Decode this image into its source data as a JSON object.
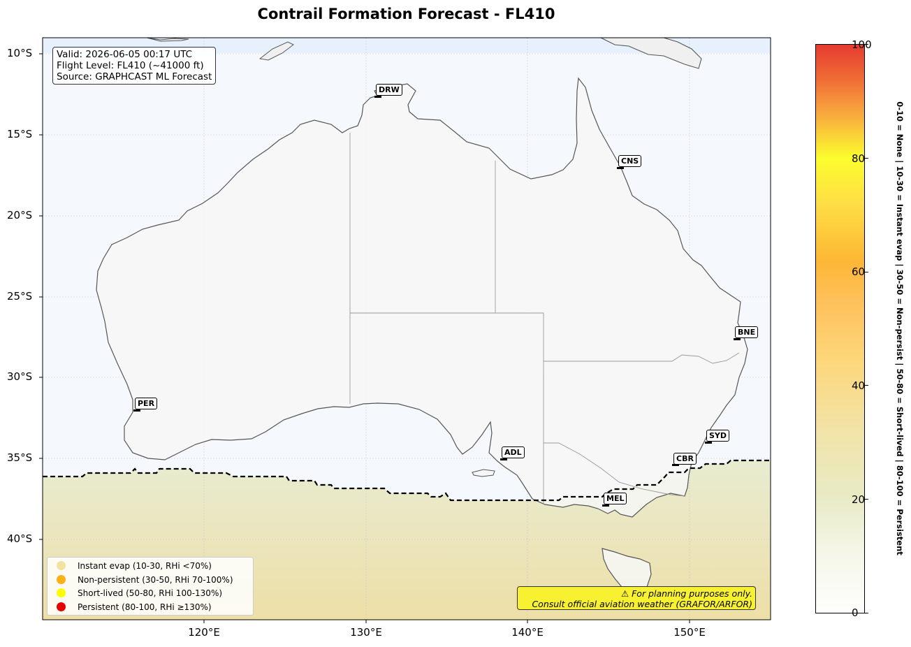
{
  "title": "Contrail Formation Forecast - FL410",
  "info": {
    "valid": "Valid: 2026-06-05 00:17 UTC",
    "flight_level": "Flight Level: FL410 (~41000 ft)",
    "source": "Source: GRAPHCAST ML Forecast"
  },
  "axes": {
    "lat_ticks": [
      "10°S",
      "15°S",
      "20°S",
      "25°S",
      "30°S",
      "35°S",
      "40°S"
    ],
    "lon_ticks": [
      "120°E",
      "130°E",
      "140°E",
      "150°E"
    ]
  },
  "cities": [
    {
      "code": "DRW",
      "lon": 130.8,
      "lat": -12.4
    },
    {
      "code": "CNS",
      "lon": 145.7,
      "lat": -16.9
    },
    {
      "code": "BNE",
      "lon": 153.0,
      "lat": -27.5
    },
    {
      "code": "PER",
      "lon": 115.9,
      "lat": -31.9
    },
    {
      "code": "SYD",
      "lon": 151.2,
      "lat": -33.9
    },
    {
      "code": "CBR",
      "lon": 149.1,
      "lat": -35.3
    },
    {
      "code": "ADL",
      "lon": 138.6,
      "lat": -34.9
    },
    {
      "code": "MEL",
      "lon": 144.9,
      "lat": -37.8
    }
  ],
  "legend": [
    {
      "label": "Instant evap (10-30, RHi <70%)",
      "color": "#f0e2a0"
    },
    {
      "label": "Non-persistent (30-50, RHi 70-100%)",
      "color": "#fbb016"
    },
    {
      "label": "Short-lived (50-80, RHi 100-130%)",
      "color": "#fdfd00"
    },
    {
      "label": "Persistent (80-100, RHi ≥130%)",
      "color": "#e60000"
    }
  ],
  "disclaimer": {
    "line1": "⚠ For planning purposes only.",
    "line2": "Consult official aviation weather (GRAFOR/ARFOR)"
  },
  "colorbar": {
    "ticks": [
      "0",
      "20",
      "40",
      "60",
      "80",
      "100"
    ],
    "label": "0-10 = None  |  10-30 = Instant evap  |  30-50 = Non-persist  |  50-80 = Short-lived  |  80-100 = Persistent"
  },
  "chart_data": {
    "type": "map",
    "projection": "PlateCarree",
    "lon_range": [
      110,
      155
    ],
    "lat_range": [
      -45,
      -9
    ],
    "contrail_boundary_lat_approx": -36.2,
    "field_south_of_boundary": "Instant evap (~20-25)",
    "field_north_of_boundary": "None (~0-5)"
  }
}
